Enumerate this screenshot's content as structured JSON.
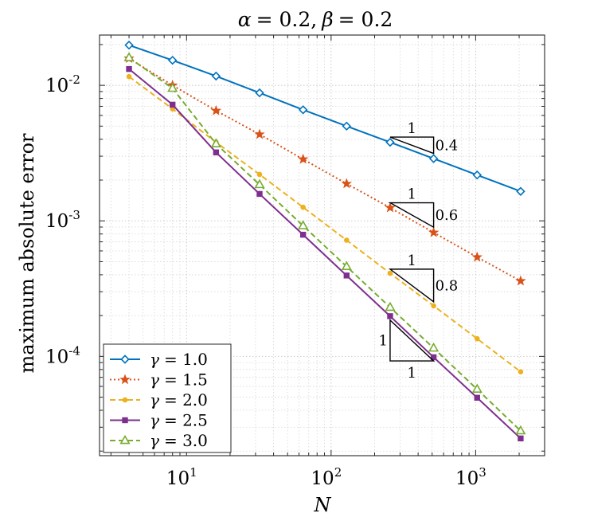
{
  "chart_data": {
    "type": "line",
    "scale": "loglog",
    "title": "α = 0.2, β = 0.2",
    "title_parts": {
      "alpha": "α",
      "alpha_value": "= 0.2,",
      "beta": "β",
      "beta_value": "= 0.2"
    },
    "xlabel": "N",
    "ylabel": "maximum absolute error",
    "xlim": [
      2.5,
      3000
    ],
    "ylim": [
      1.85e-05,
      0.0235
    ],
    "grid": true,
    "x_ticks": [
      {
        "value": 10,
        "base": "10",
        "exp": "1"
      },
      {
        "value": 100,
        "base": "10",
        "exp": "2"
      },
      {
        "value": 1000,
        "base": "10",
        "exp": "3"
      }
    ],
    "y_ticks": [
      {
        "value": 0.01,
        "base": "10",
        "exp": "-2"
      },
      {
        "value": 0.001,
        "base": "10",
        "exp": "-3"
      },
      {
        "value": 0.0001,
        "base": "10",
        "exp": "-4"
      }
    ],
    "x": [
      4,
      8,
      16,
      32,
      64,
      128,
      256,
      512,
      1024,
      2048
    ],
    "series": [
      {
        "name": "γ = 1.0",
        "gamma": "1.0",
        "color": "#0072BD",
        "dash": "solid",
        "marker": "diamond",
        "values": [
          0.0198,
          0.0153,
          0.0117,
          0.0088,
          0.0066,
          0.005,
          0.0038,
          0.00288,
          0.00218,
          0.00165
        ]
      },
      {
        "name": "γ = 1.5",
        "gamma": "1.5",
        "color": "#D95319",
        "dash": "dotted",
        "marker": "star",
        "values": [
          0.0158,
          0.01,
          0.0065,
          0.00435,
          0.00285,
          0.00188,
          0.00125,
          0.00082,
          0.00054,
          0.00036
        ]
      },
      {
        "name": "γ = 2.0",
        "gamma": "2.0",
        "color": "#EDB120",
        "dash": "dashed",
        "marker": "dot",
        "values": [
          0.0116,
          0.0067,
          0.0038,
          0.0022,
          0.00126,
          0.00072,
          0.00041,
          0.000236,
          0.000135,
          7.7e-05
        ]
      },
      {
        "name": "γ = 2.5",
        "gamma": "2.5",
        "color": "#7E2F8E",
        "dash": "solid",
        "marker": "square",
        "values": [
          0.0132,
          0.0072,
          0.0032,
          0.00158,
          0.00079,
          0.000395,
          0.000198,
          9.85e-05,
          4.95e-05,
          2.48e-05
        ]
      },
      {
        "name": "γ = 3.0",
        "gamma": "3.0",
        "color": "#77AC30",
        "dash": "dashed",
        "marker": "triangle",
        "values": [
          0.016,
          0.0095,
          0.0037,
          0.00185,
          0.00092,
          0.00046,
          0.00023,
          0.000115,
          5.72e-05,
          2.82e-05
        ]
      }
    ],
    "legend": {
      "position": "bottom-left",
      "gamma_symbol": "γ",
      "eq": "= "
    },
    "slope_triangles": [
      {
        "run_label": "1",
        "rise_label": "0.4",
        "x0": 256,
        "x1": 512,
        "y_top": 0.00415,
        "slope": 0.4,
        "labels_outside": true
      },
      {
        "run_label": "1",
        "rise_label": "0.6",
        "x0": 256,
        "x1": 512,
        "y_top": 0.00136,
        "slope": 0.6,
        "labels_outside": true
      },
      {
        "run_label": "1",
        "rise_label": "0.8",
        "x0": 256,
        "x1": 512,
        "y_top": 0.00044,
        "slope": 0.8,
        "labels_outside": true
      },
      {
        "run_label": "1",
        "rise_label": "1",
        "x0": 256,
        "x1": 512,
        "y_top": 0.000185,
        "slope": 1.0,
        "labels_outside": false
      }
    ]
  }
}
